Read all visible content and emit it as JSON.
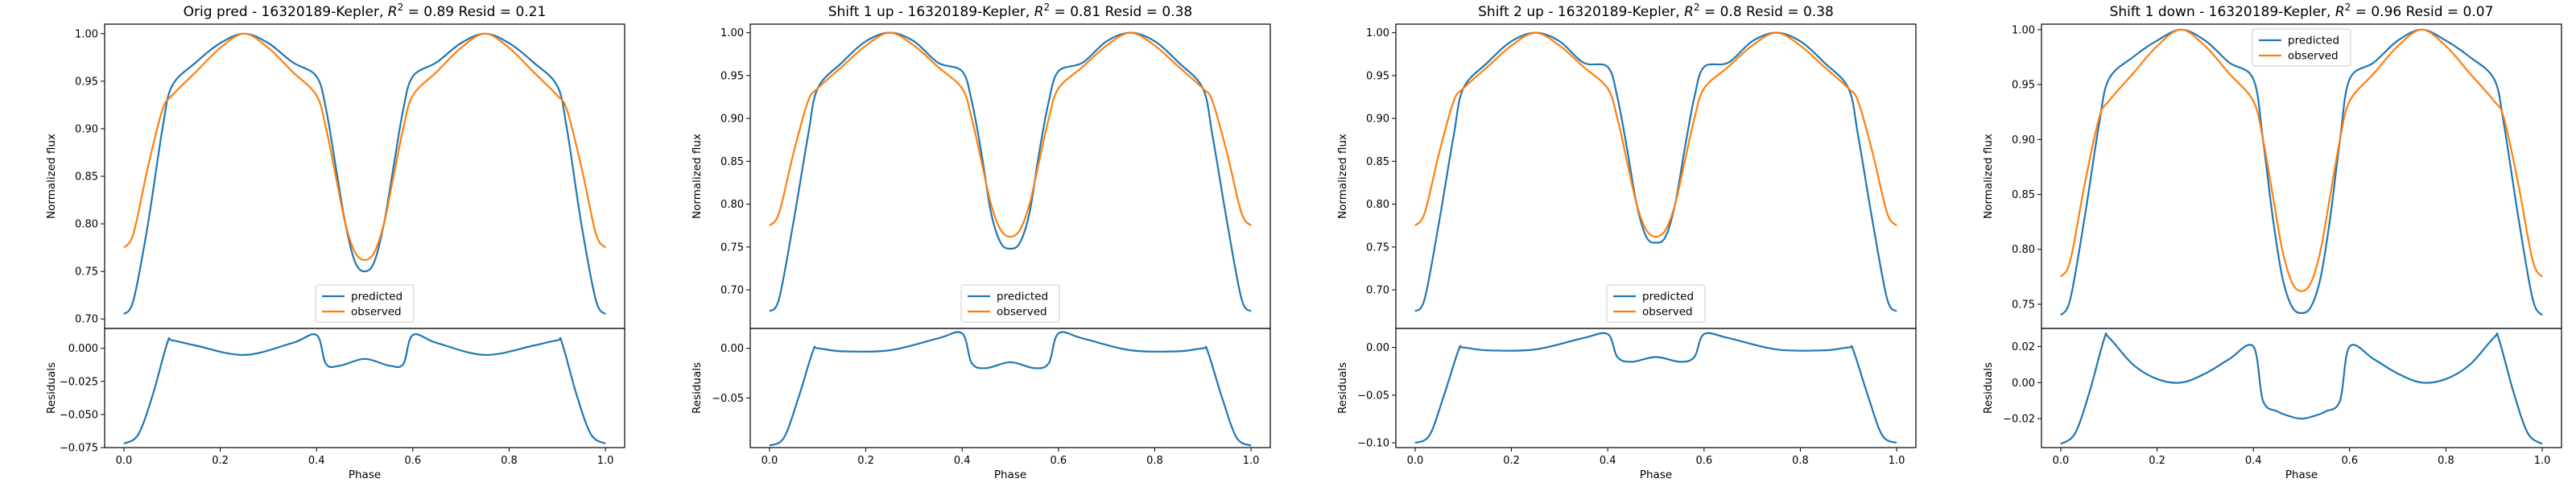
{
  "colors": {
    "predicted": "#1f77b4",
    "observed": "#ff7f0e",
    "axes": "#000000",
    "background": "#ffffff"
  },
  "chart_data": [
    {
      "type": "line",
      "title": "Orig pred - 16320189-Kepler, $R^2 = 0.89$ Resid = 0.21",
      "title_parts": {
        "prefix": "Orig pred - 16320189-Kepler, ",
        "r2": "0.89",
        "suffix": " Resid = 0.21"
      },
      "ylabel": "Normalized flux",
      "residual_ylabel": "Residuals",
      "xlabel": "Phase",
      "xlim": [
        -0.04,
        1.04
      ],
      "xticks": [
        0.0,
        0.2,
        0.4,
        0.6,
        0.8,
        1.0
      ],
      "xtick_labels": [
        "0.0",
        "0.2",
        "0.4",
        "0.6",
        "0.8",
        "1.0"
      ],
      "ylim": [
        0.69,
        1.01
      ],
      "yticks": [
        0.7,
        0.75,
        0.8,
        0.85,
        0.9,
        0.95,
        1.0
      ],
      "ytick_labels": [
        "0.70",
        "0.75",
        "0.80",
        "0.85",
        "0.90",
        "0.95",
        "1.00"
      ],
      "residual_ylim": [
        -0.075,
        0.015
      ],
      "residual_yticks": [
        -0.075,
        -0.05,
        -0.025,
        0.0
      ],
      "residual_ytick_labels": [
        "−0.075",
        "−0.050",
        "−0.025",
        "0.000"
      ],
      "legend": {
        "location": "lower center",
        "entries": [
          "predicted",
          "observed"
        ]
      },
      "series": [
        {
          "name": "predicted",
          "x": [
            0.0,
            0.02,
            0.05,
            0.08,
            0.1,
            0.15,
            0.2,
            0.25,
            0.3,
            0.35,
            0.4,
            0.42,
            0.44,
            0.46,
            0.48,
            0.5,
            0.52,
            0.54,
            0.56,
            0.58,
            0.6,
            0.65,
            0.7,
            0.75,
            0.8,
            0.85,
            0.9,
            0.92,
            0.95,
            0.98,
            1.0
          ],
          "y": [
            0.705,
            0.72,
            0.8,
            0.9,
            0.945,
            0.97,
            0.99,
            1.0,
            0.99,
            0.97,
            0.955,
            0.92,
            0.86,
            0.8,
            0.76,
            0.75,
            0.76,
            0.8,
            0.86,
            0.92,
            0.955,
            0.97,
            0.99,
            1.0,
            0.99,
            0.97,
            0.945,
            0.9,
            0.8,
            0.72,
            0.705
          ]
        },
        {
          "name": "observed",
          "x": [
            0.0,
            0.02,
            0.05,
            0.08,
            0.1,
            0.15,
            0.2,
            0.25,
            0.3,
            0.35,
            0.4,
            0.42,
            0.44,
            0.46,
            0.48,
            0.5,
            0.52,
            0.54,
            0.56,
            0.58,
            0.6,
            0.65,
            0.7,
            0.75,
            0.8,
            0.85,
            0.9,
            0.92,
            0.95,
            0.98,
            1.0
          ],
          "y": [
            0.775,
            0.79,
            0.86,
            0.92,
            0.935,
            0.96,
            0.985,
            1.0,
            0.985,
            0.96,
            0.935,
            0.9,
            0.85,
            0.8,
            0.77,
            0.762,
            0.77,
            0.8,
            0.85,
            0.9,
            0.935,
            0.96,
            0.985,
            1.0,
            0.985,
            0.96,
            0.935,
            0.92,
            0.86,
            0.79,
            0.775
          ]
        }
      ],
      "residuals": {
        "x": [
          0.0,
          0.03,
          0.06,
          0.09,
          0.1,
          0.15,
          0.25,
          0.35,
          0.4,
          0.42,
          0.45,
          0.5,
          0.55,
          0.58,
          0.6,
          0.65,
          0.75,
          0.85,
          0.9,
          0.91,
          0.94,
          0.97,
          1.0
        ],
        "y": [
          -0.072,
          -0.065,
          -0.035,
          0.004,
          0.006,
          0.002,
          -0.005,
          0.004,
          0.01,
          -0.012,
          -0.013,
          -0.008,
          -0.013,
          -0.012,
          0.01,
          0.004,
          -0.005,
          0.002,
          0.006,
          0.004,
          -0.035,
          -0.065,
          -0.072
        ]
      }
    },
    {
      "type": "line",
      "title": "Shift 1 up - 16320189-Kepler, $R^2 = 0.81$ Resid = 0.38",
      "title_parts": {
        "prefix": "Shift 1 up - 16320189-Kepler, ",
        "r2": "0.81",
        "suffix": " Resid = 0.38"
      },
      "ylabel": "Normalized flux",
      "residual_ylabel": "Residuals",
      "xlabel": "Phase",
      "xlim": [
        -0.04,
        1.04
      ],
      "xticks": [
        0.0,
        0.2,
        0.4,
        0.6,
        0.8,
        1.0
      ],
      "xtick_labels": [
        "0.0",
        "0.2",
        "0.4",
        "0.6",
        "0.8",
        "1.0"
      ],
      "ylim": [
        0.655,
        1.01
      ],
      "yticks": [
        0.7,
        0.75,
        0.8,
        0.85,
        0.9,
        0.95,
        1.0
      ],
      "ytick_labels": [
        "0.70",
        "0.75",
        "0.80",
        "0.85",
        "0.90",
        "0.95",
        "1.00"
      ],
      "residual_ylim": [
        -0.1,
        0.02
      ],
      "residual_yticks": [
        -0.05,
        0.0
      ],
      "residual_ytick_labels": [
        "−0.05",
        "0.00"
      ],
      "legend": {
        "location": "lower center",
        "entries": [
          "predicted",
          "observed"
        ]
      },
      "series": [
        {
          "name": "predicted",
          "x": [
            0.0,
            0.02,
            0.05,
            0.08,
            0.1,
            0.15,
            0.2,
            0.25,
            0.3,
            0.35,
            0.4,
            0.42,
            0.44,
            0.46,
            0.48,
            0.5,
            0.52,
            0.54,
            0.56,
            0.58,
            0.6,
            0.65,
            0.7,
            0.75,
            0.8,
            0.85,
            0.9,
            0.92,
            0.95,
            0.98,
            1.0
          ],
          "y": [
            0.675,
            0.69,
            0.78,
            0.88,
            0.935,
            0.965,
            0.99,
            1.0,
            0.99,
            0.965,
            0.955,
            0.92,
            0.86,
            0.79,
            0.755,
            0.748,
            0.755,
            0.79,
            0.86,
            0.92,
            0.955,
            0.965,
            0.99,
            1.0,
            0.99,
            0.965,
            0.935,
            0.88,
            0.78,
            0.69,
            0.675
          ]
        },
        {
          "name": "observed",
          "x": [
            0.0,
            0.02,
            0.05,
            0.08,
            0.1,
            0.15,
            0.2,
            0.25,
            0.3,
            0.35,
            0.4,
            0.42,
            0.44,
            0.46,
            0.48,
            0.5,
            0.52,
            0.54,
            0.56,
            0.58,
            0.6,
            0.65,
            0.7,
            0.75,
            0.8,
            0.85,
            0.9,
            0.92,
            0.95,
            0.98,
            1.0
          ],
          "y": [
            0.775,
            0.79,
            0.86,
            0.92,
            0.935,
            0.96,
            0.985,
            1.0,
            0.985,
            0.96,
            0.935,
            0.9,
            0.85,
            0.8,
            0.77,
            0.762,
            0.77,
            0.8,
            0.85,
            0.9,
            0.935,
            0.96,
            0.985,
            1.0,
            0.985,
            0.96,
            0.935,
            0.92,
            0.86,
            0.79,
            0.775
          ]
        }
      ],
      "residuals": {
        "x": [
          0.0,
          0.03,
          0.06,
          0.09,
          0.1,
          0.15,
          0.25,
          0.35,
          0.4,
          0.42,
          0.45,
          0.5,
          0.55,
          0.58,
          0.6,
          0.65,
          0.75,
          0.85,
          0.9,
          0.91,
          0.94,
          0.97,
          1.0
        ],
        "y": [
          -0.098,
          -0.09,
          -0.05,
          -0.003,
          0.0,
          -0.003,
          -0.002,
          0.01,
          0.015,
          -0.015,
          -0.02,
          -0.014,
          -0.02,
          -0.015,
          0.015,
          0.01,
          -0.002,
          -0.003,
          0.0,
          -0.003,
          -0.05,
          -0.09,
          -0.098
        ]
      }
    },
    {
      "type": "line",
      "title": "Shift 2 up - 16320189-Kepler, $R^2 = 0.8$ Resid = 0.38",
      "title_parts": {
        "prefix": "Shift 2 up - 16320189-Kepler, ",
        "r2": "0.8",
        "suffix": " Resid = 0.38"
      },
      "ylabel": "Normalized flux",
      "residual_ylabel": "Residuals",
      "xlabel": "Phase",
      "xlim": [
        -0.04,
        1.04
      ],
      "xticks": [
        0.0,
        0.2,
        0.4,
        0.6,
        0.8,
        1.0
      ],
      "xtick_labels": [
        "0.0",
        "0.2",
        "0.4",
        "0.6",
        "0.8",
        "1.0"
      ],
      "ylim": [
        0.655,
        1.01
      ],
      "yticks": [
        0.7,
        0.75,
        0.8,
        0.85,
        0.9,
        0.95,
        1.0
      ],
      "ytick_labels": [
        "0.70",
        "0.75",
        "0.80",
        "0.85",
        "0.90",
        "0.95",
        "1.00"
      ],
      "residual_ylim": [
        -0.105,
        0.02
      ],
      "residual_yticks": [
        -0.1,
        -0.05,
        0.0
      ],
      "residual_ytick_labels": [
        "−0.10",
        "−0.05",
        "0.00"
      ],
      "legend": {
        "location": "lower center",
        "entries": [
          "predicted",
          "observed"
        ]
      },
      "series": [
        {
          "name": "predicted",
          "x": [
            0.0,
            0.02,
            0.05,
            0.08,
            0.1,
            0.15,
            0.2,
            0.25,
            0.3,
            0.35,
            0.4,
            0.42,
            0.44,
            0.46,
            0.48,
            0.5,
            0.52,
            0.54,
            0.56,
            0.58,
            0.6,
            0.65,
            0.7,
            0.75,
            0.8,
            0.85,
            0.9,
            0.92,
            0.95,
            0.98,
            1.0
          ],
          "y": [
            0.675,
            0.69,
            0.78,
            0.88,
            0.935,
            0.965,
            0.99,
            1.0,
            0.99,
            0.965,
            0.96,
            0.925,
            0.865,
            0.8,
            0.762,
            0.755,
            0.762,
            0.8,
            0.865,
            0.925,
            0.96,
            0.965,
            0.99,
            1.0,
            0.99,
            0.965,
            0.935,
            0.88,
            0.78,
            0.69,
            0.675
          ]
        },
        {
          "name": "observed",
          "x": [
            0.0,
            0.02,
            0.05,
            0.08,
            0.1,
            0.15,
            0.2,
            0.25,
            0.3,
            0.35,
            0.4,
            0.42,
            0.44,
            0.46,
            0.48,
            0.5,
            0.52,
            0.54,
            0.56,
            0.58,
            0.6,
            0.65,
            0.7,
            0.75,
            0.8,
            0.85,
            0.9,
            0.92,
            0.95,
            0.98,
            1.0
          ],
          "y": [
            0.775,
            0.79,
            0.86,
            0.92,
            0.935,
            0.96,
            0.985,
            1.0,
            0.985,
            0.96,
            0.935,
            0.9,
            0.85,
            0.8,
            0.77,
            0.762,
            0.77,
            0.8,
            0.85,
            0.9,
            0.935,
            0.96,
            0.985,
            1.0,
            0.985,
            0.96,
            0.935,
            0.92,
            0.86,
            0.79,
            0.775
          ]
        }
      ],
      "residuals": {
        "x": [
          0.0,
          0.03,
          0.06,
          0.09,
          0.1,
          0.15,
          0.25,
          0.35,
          0.4,
          0.42,
          0.45,
          0.5,
          0.55,
          0.58,
          0.6,
          0.65,
          0.75,
          0.85,
          0.9,
          0.91,
          0.94,
          0.97,
          1.0
        ],
        "y": [
          -0.1,
          -0.092,
          -0.05,
          -0.003,
          0.0,
          -0.003,
          -0.002,
          0.01,
          0.014,
          -0.01,
          -0.015,
          -0.01,
          -0.015,
          -0.01,
          0.014,
          0.01,
          -0.002,
          -0.003,
          0.0,
          -0.003,
          -0.05,
          -0.092,
          -0.1
        ]
      }
    },
    {
      "type": "line",
      "title": "Shift 1 down - 16320189-Kepler, $R^2 = 0.96$ Resid = 0.07",
      "title_parts": {
        "prefix": "Shift 1 down - 16320189-Kepler, ",
        "r2": "0.96",
        "suffix": " Resid = 0.07"
      },
      "ylabel": "Normalized flux",
      "residual_ylabel": "Residuals",
      "xlabel": "Phase",
      "xlim": [
        -0.04,
        1.04
      ],
      "xticks": [
        0.0,
        0.2,
        0.4,
        0.6,
        0.8,
        1.0
      ],
      "xtick_labels": [
        "0.0",
        "0.2",
        "0.4",
        "0.6",
        "0.8",
        "1.0"
      ],
      "ylim": [
        0.728,
        1.005
      ],
      "yticks": [
        0.75,
        0.8,
        0.85,
        0.9,
        0.95,
        1.0
      ],
      "ytick_labels": [
        "0.75",
        "0.80",
        "0.85",
        "0.90",
        "0.95",
        "1.00"
      ],
      "residual_ylim": [
        -0.036,
        0.03
      ],
      "residual_yticks": [
        -0.02,
        0.0,
        0.02
      ],
      "residual_ytick_labels": [
        "−0.02",
        "0.00",
        "0.02"
      ],
      "legend": {
        "location": "upper center",
        "entries": [
          "predicted",
          "observed"
        ]
      },
      "series": [
        {
          "name": "predicted",
          "x": [
            0.0,
            0.02,
            0.05,
            0.08,
            0.1,
            0.15,
            0.2,
            0.25,
            0.3,
            0.35,
            0.4,
            0.42,
            0.44,
            0.46,
            0.48,
            0.5,
            0.52,
            0.54,
            0.56,
            0.58,
            0.6,
            0.65,
            0.7,
            0.75,
            0.8,
            0.85,
            0.9,
            0.92,
            0.95,
            0.98,
            1.0
          ],
          "y": [
            0.74,
            0.755,
            0.83,
            0.915,
            0.955,
            0.975,
            0.99,
            1.0,
            0.99,
            0.97,
            0.955,
            0.9,
            0.83,
            0.775,
            0.748,
            0.742,
            0.748,
            0.775,
            0.83,
            0.9,
            0.955,
            0.97,
            0.99,
            1.0,
            0.99,
            0.975,
            0.955,
            0.915,
            0.83,
            0.755,
            0.74
          ]
        },
        {
          "name": "observed",
          "x": [
            0.0,
            0.02,
            0.05,
            0.08,
            0.1,
            0.15,
            0.2,
            0.25,
            0.3,
            0.35,
            0.4,
            0.42,
            0.44,
            0.46,
            0.48,
            0.5,
            0.52,
            0.54,
            0.56,
            0.58,
            0.6,
            0.65,
            0.7,
            0.75,
            0.8,
            0.85,
            0.9,
            0.92,
            0.95,
            0.98,
            1.0
          ],
          "y": [
            0.775,
            0.79,
            0.86,
            0.92,
            0.935,
            0.96,
            0.985,
            1.0,
            0.985,
            0.96,
            0.935,
            0.9,
            0.85,
            0.8,
            0.77,
            0.762,
            0.77,
            0.8,
            0.85,
            0.9,
            0.935,
            0.96,
            0.985,
            1.0,
            0.985,
            0.96,
            0.935,
            0.92,
            0.86,
            0.79,
            0.775
          ]
        }
      ],
      "residuals": {
        "x": [
          0.0,
          0.03,
          0.06,
          0.09,
          0.1,
          0.15,
          0.2,
          0.25,
          0.3,
          0.35,
          0.4,
          0.42,
          0.45,
          0.48,
          0.5,
          0.52,
          0.55,
          0.58,
          0.6,
          0.65,
          0.7,
          0.75,
          0.8,
          0.85,
          0.9,
          0.91,
          0.94,
          0.97,
          1.0
        ],
        "y": [
          -0.034,
          -0.028,
          -0.005,
          0.024,
          0.025,
          0.01,
          0.002,
          0.0,
          0.005,
          0.013,
          0.02,
          -0.01,
          -0.016,
          -0.019,
          -0.02,
          -0.019,
          -0.016,
          -0.01,
          0.02,
          0.013,
          0.005,
          0.0,
          0.002,
          0.01,
          0.025,
          0.024,
          -0.005,
          -0.028,
          -0.034
        ]
      }
    }
  ]
}
